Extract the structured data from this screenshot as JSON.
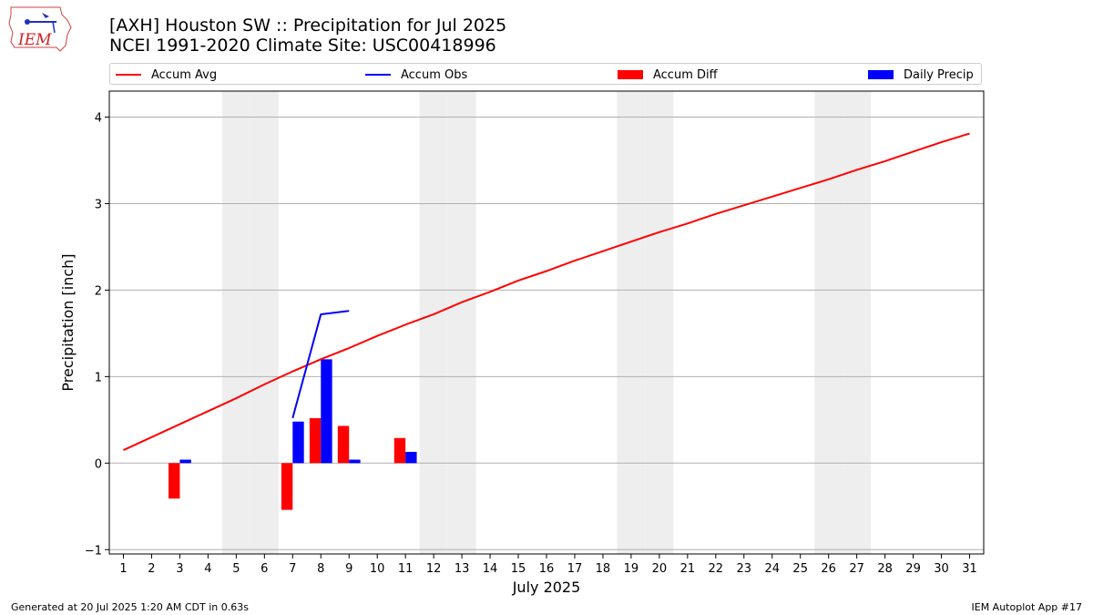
{
  "header": {
    "title_line1": "[AXH] Houston SW :: Precipitation for Jul 2025",
    "title_line2": "NCEI 1991-2020 Climate Site: USC00418996",
    "logo_text": "IEM"
  },
  "footer": {
    "left": "Generated at 20 Jul 2025 1:20 AM CDT in 0.63s",
    "right": "IEM Autoplot App #17"
  },
  "colors": {
    "avg": "#ff0000",
    "obs": "#0000ff",
    "diff": "#ff0000",
    "daily": "#0000ff",
    "weekend": "#eeeeee",
    "grid": "#b0b0b0"
  },
  "legend": [
    {
      "label": "Accum Avg",
      "kind": "line",
      "color": "#ff0000"
    },
    {
      "label": "Accum Obs",
      "kind": "line",
      "color": "#0000ff"
    },
    {
      "label": "Accum Diff",
      "kind": "box",
      "color": "#ff0000"
    },
    {
      "label": "Daily Precip",
      "kind": "box",
      "color": "#0000ff"
    }
  ],
  "chart_data": {
    "type": "bar",
    "xlabel": "July 2025",
    "ylabel": "Precipitation [inch]",
    "xlim": [
      0.5,
      31.5
    ],
    "ylim": [
      -1.05,
      4.3
    ],
    "yticks": [
      -1,
      0,
      1,
      2,
      3,
      4
    ],
    "xticks": [
      "1",
      "2",
      "3",
      "4",
      "5",
      "6",
      "7",
      "8",
      "9",
      "10",
      "11",
      "12",
      "13",
      "14",
      "15",
      "16",
      "17",
      "18",
      "19",
      "20",
      "21",
      "22",
      "23",
      "24",
      "25",
      "26",
      "27",
      "28",
      "29",
      "30",
      "31"
    ],
    "grid": "y",
    "legend_position": "top",
    "weekend_days": [
      5,
      6,
      12,
      13,
      19,
      20,
      26,
      27
    ],
    "series": [
      {
        "name": "Accum Avg",
        "kind": "line",
        "x": [
          1,
          2,
          3,
          4,
          5,
          6,
          7,
          8,
          9,
          10,
          11,
          12,
          13,
          14,
          15,
          16,
          17,
          18,
          19,
          20,
          21,
          22,
          23,
          24,
          25,
          26,
          27,
          28,
          29,
          30,
          31
        ],
        "values": [
          0.15,
          0.3,
          0.45,
          0.6,
          0.75,
          0.91,
          1.06,
          1.2,
          1.33,
          1.47,
          1.6,
          1.72,
          1.86,
          1.98,
          2.11,
          2.22,
          2.34,
          2.45,
          2.56,
          2.67,
          2.77,
          2.88,
          2.98,
          3.08,
          3.18,
          3.28,
          3.39,
          3.49,
          3.6,
          3.71,
          3.81
        ]
      },
      {
        "name": "Accum Obs",
        "kind": "line",
        "x": [
          7,
          8,
          9
        ],
        "values": [
          0.52,
          1.72,
          1.76
        ]
      },
      {
        "name": "Accum Diff",
        "kind": "bar",
        "x": [
          3,
          7,
          8,
          9,
          11
        ],
        "values": [
          -0.41,
          -0.54,
          0.52,
          0.43,
          0.29
        ]
      },
      {
        "name": "Daily Precip",
        "kind": "bar",
        "x": [
          3,
          7,
          8,
          9,
          11
        ],
        "values": [
          0.04,
          0.48,
          1.2,
          0.04,
          0.13
        ]
      }
    ]
  }
}
